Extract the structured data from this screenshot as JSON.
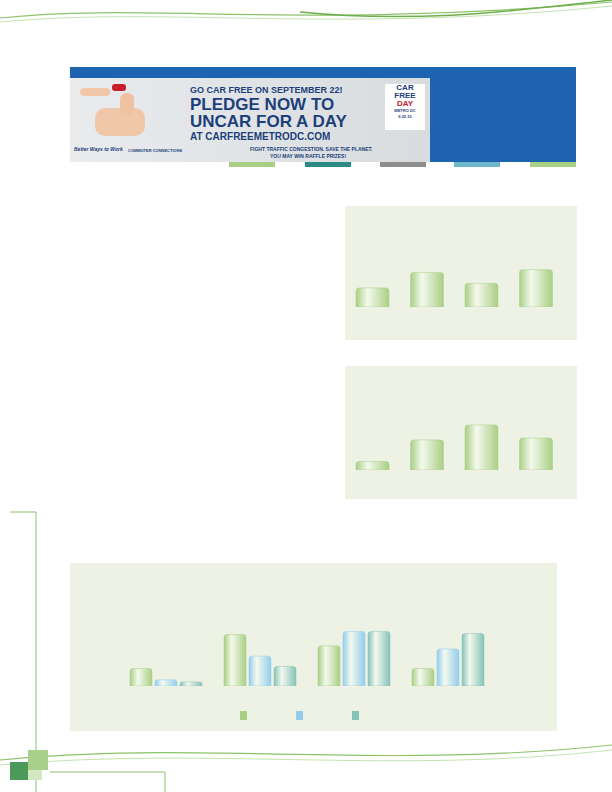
{
  "banner": {
    "headline": "GO CAR FREE ON SEPTEMBER 22!",
    "pledge_lines": [
      "PLEDGE NOW TO",
      "UNCAR FOR A DAY",
      "AT CARFREEMETRODC.COM"
    ],
    "tagline": "FIGHT TRAFFIC CONGESTION. SAVE THE PLANET.",
    "prize": "YOU MAY WIN RAFFLE PRIZES!",
    "logo_lines": [
      "CAR",
      "FREE",
      "DAY",
      "METRO DC",
      "9.22.10"
    ],
    "sponsors": [
      "Better Ways to Work",
      "COMMUTER CONNECTIONS"
    ]
  },
  "chart_data": [
    {
      "type": "bar",
      "categories": [
        null,
        null,
        null,
        null
      ],
      "values": [
        21,
        38,
        26,
        41
      ],
      "color": "#a9cf84",
      "ylim": [
        0,
        100
      ],
      "yticks": [],
      "tick_labels": false
    },
    {
      "type": "bar",
      "categories": [
        null,
        null,
        null,
        null
      ],
      "values": [
        9,
        32,
        48,
        34
      ],
      "color": "#a9cf84",
      "ylim": [
        0,
        100
      ],
      "yticks": [],
      "tick_labels": false
    },
    {
      "type": "bar",
      "categories": [
        null,
        null,
        null,
        null
      ],
      "series": [
        {
          "color": "#a9cf84",
          "values": [
            17,
            50,
            39,
            17
          ]
        },
        {
          "color": "#93cdec",
          "values": [
            6,
            29,
            53,
            36
          ]
        },
        {
          "color": "#86c2b8",
          "values": [
            4,
            19,
            53,
            51
          ]
        }
      ],
      "ylim": [
        0,
        100
      ],
      "yticks": [],
      "tick_labels": false
    }
  ]
}
